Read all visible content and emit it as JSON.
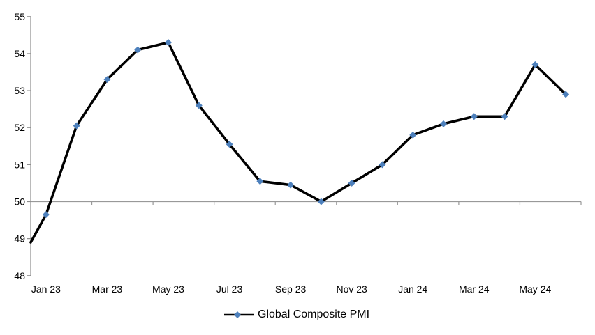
{
  "chart_data": {
    "type": "line",
    "title": "",
    "categories": [
      "Jan 23",
      "Feb 23",
      "Mar 23",
      "Apr 23",
      "May 23",
      "Jun 23",
      "Jul 23",
      "Aug 23",
      "Sep 23",
      "Oct 23",
      "Nov 23",
      "Dec 23",
      "Jan 24",
      "Feb 24",
      "Mar 24",
      "Apr 24",
      "May 24",
      "Jun 24"
    ],
    "series": [
      {
        "name": "Global Composite PMI",
        "values": [
          49.65,
          52.05,
          53.3,
          54.1,
          54.3,
          52.6,
          51.55,
          50.55,
          50.45,
          50.0,
          50.5,
          51.0,
          51.8,
          52.1,
          52.3,
          52.3,
          53.7,
          52.9
        ]
      }
    ],
    "line_enters_left_edge_at_value": 48.9,
    "x_axis": {
      "visible_tick_labels": [
        "Jan 23",
        "Mar 23",
        "May 23",
        "Jul 23",
        "Sep 23",
        "Nov 23",
        "Jan 24",
        "Mar 24",
        "May 24"
      ],
      "label_every_n_categories": 2,
      "axis_crosses_y_at": 50,
      "tick_marks_every_n_categories": 2
    },
    "y_axis": {
      "min": 48,
      "max": 55,
      "tick_interval": 1,
      "ticks": [
        48,
        49,
        50,
        51,
        52,
        53,
        54,
        55
      ]
    },
    "legend": {
      "label": "Global Composite PMI",
      "position": "bottom-center"
    },
    "grid": "single horizontal category-axis line at value 50 only",
    "colors": {
      "line": "#000000",
      "marker": "#4D80BC",
      "axis_spine": "#8C8C8C",
      "axis_50_line": "#999999",
      "text": "#000000",
      "background": "#FFFFFF"
    }
  }
}
